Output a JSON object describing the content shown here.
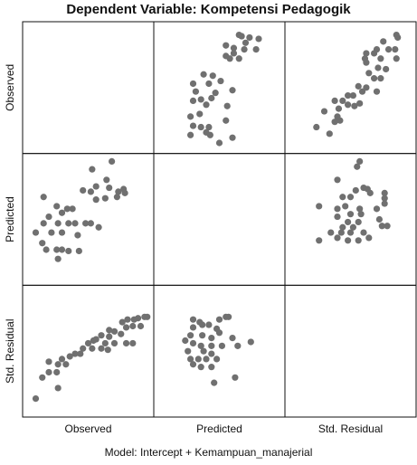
{
  "chart_data": {
    "type": "scatter",
    "title": "Dependent Variable: Kompetensi Pedagogik",
    "footnote": "Model: Intercept + Kemampuan_manajerial",
    "variables": [
      "Observed",
      "Predicted",
      "Std. Residual"
    ],
    "grid": "3x3 scatterplot matrix, diagonal cells empty",
    "cells": [
      {
        "row": "Observed",
        "col": "Predicted",
        "points": [
          [
            0.65,
            0.1
          ],
          [
            0.67,
            0.11
          ],
          [
            0.73,
            0.12
          ],
          [
            0.8,
            0.13
          ],
          [
            0.7,
            0.16
          ],
          [
            0.55,
            0.18
          ],
          [
            0.61,
            0.2
          ],
          [
            0.69,
            0.21
          ],
          [
            0.78,
            0.21
          ],
          [
            0.61,
            0.24
          ],
          [
            0.55,
            0.26
          ],
          [
            0.58,
            0.28
          ],
          [
            0.65,
            0.28
          ],
          [
            0.38,
            0.4
          ],
          [
            0.45,
            0.41
          ],
          [
            0.51,
            0.45
          ],
          [
            0.3,
            0.47
          ],
          [
            0.42,
            0.47
          ],
          [
            0.6,
            0.52
          ],
          [
            0.32,
            0.53
          ],
          [
            0.47,
            0.54
          ],
          [
            0.44,
            0.58
          ],
          [
            0.36,
            0.59
          ],
          [
            0.3,
            0.6
          ],
          [
            0.4,
            0.63
          ],
          [
            0.56,
            0.64
          ],
          [
            0.35,
            0.7
          ],
          [
            0.28,
            0.72
          ],
          [
            0.55,
            0.75
          ],
          [
            0.3,
            0.79
          ],
          [
            0.36,
            0.8
          ],
          [
            0.42,
            0.8
          ],
          [
            0.4,
            0.84
          ],
          [
            0.28,
            0.86
          ],
          [
            0.43,
            0.86
          ],
          [
            0.6,
            0.88
          ],
          [
            0.5,
            0.92
          ]
        ]
      },
      {
        "row": "Observed",
        "col": "Std. Residual",
        "points": [
          [
            0.85,
            0.1
          ],
          [
            0.86,
            0.12
          ],
          [
            0.75,
            0.15
          ],
          [
            0.7,
            0.21
          ],
          [
            0.79,
            0.21
          ],
          [
            0.84,
            0.21
          ],
          [
            0.62,
            0.24
          ],
          [
            0.68,
            0.24
          ],
          [
            0.61,
            0.28
          ],
          [
            0.73,
            0.28
          ],
          [
            0.85,
            0.28
          ],
          [
            0.62,
            0.31
          ],
          [
            0.71,
            0.35
          ],
          [
            0.77,
            0.36
          ],
          [
            0.64,
            0.39
          ],
          [
            0.68,
            0.43
          ],
          [
            0.73,
            0.43
          ],
          [
            0.56,
            0.49
          ],
          [
            0.62,
            0.5
          ],
          [
            0.59,
            0.53
          ],
          [
            0.7,
            0.53
          ],
          [
            0.48,
            0.56
          ],
          [
            0.52,
            0.56
          ],
          [
            0.38,
            0.6
          ],
          [
            0.44,
            0.6
          ],
          [
            0.57,
            0.62
          ],
          [
            0.48,
            0.63
          ],
          [
            0.53,
            0.64
          ],
          [
            0.41,
            0.66
          ],
          [
            0.3,
            0.68
          ],
          [
            0.4,
            0.72
          ],
          [
            0.42,
            0.75
          ],
          [
            0.24,
            0.8
          ],
          [
            0.38,
            0.76
          ],
          [
            0.34,
            0.85
          ]
        ]
      },
      {
        "row": "Predicted",
        "col": "Observed",
        "points": [
          [
            0.68,
            0.06
          ],
          [
            0.53,
            0.12
          ],
          [
            0.64,
            0.2
          ],
          [
            0.56,
            0.25
          ],
          [
            0.66,
            0.26
          ],
          [
            0.77,
            0.27
          ],
          [
            0.46,
            0.28
          ],
          [
            0.52,
            0.29
          ],
          [
            0.73,
            0.29
          ],
          [
            0.78,
            0.3
          ],
          [
            0.16,
            0.33
          ],
          [
            0.72,
            0.33
          ],
          [
            0.63,
            0.34
          ],
          [
            0.56,
            0.35
          ],
          [
            0.26,
            0.4
          ],
          [
            0.34,
            0.42
          ],
          [
            0.38,
            0.42
          ],
          [
            0.3,
            0.45
          ],
          [
            0.2,
            0.48
          ],
          [
            0.16,
            0.53
          ],
          [
            0.27,
            0.53
          ],
          [
            0.35,
            0.53
          ],
          [
            0.4,
            0.53
          ],
          [
            0.48,
            0.53
          ],
          [
            0.52,
            0.53
          ],
          [
            0.58,
            0.56
          ],
          [
            0.1,
            0.6
          ],
          [
            0.22,
            0.6
          ],
          [
            0.3,
            0.6
          ],
          [
            0.42,
            0.62
          ],
          [
            0.15,
            0.68
          ],
          [
            0.18,
            0.73
          ],
          [
            0.26,
            0.73
          ],
          [
            0.3,
            0.73
          ],
          [
            0.35,
            0.74
          ],
          [
            0.43,
            0.74
          ],
          [
            0.27,
            0.8
          ]
        ]
      },
      {
        "row": "Predicted",
        "col": "Std. Residual",
        "points": [
          [
            0.57,
            0.06
          ],
          [
            0.55,
            0.1
          ],
          [
            0.4,
            0.2
          ],
          [
            0.63,
            0.27
          ],
          [
            0.6,
            0.26
          ],
          [
            0.54,
            0.28
          ],
          [
            0.65,
            0.3
          ],
          [
            0.44,
            0.33
          ],
          [
            0.5,
            0.33
          ],
          [
            0.76,
            0.3
          ],
          [
            0.76,
            0.34
          ],
          [
            0.26,
            0.4
          ],
          [
            0.76,
            0.38
          ],
          [
            0.57,
            0.42
          ],
          [
            0.46,
            0.4
          ],
          [
            0.4,
            0.42
          ],
          [
            0.7,
            0.42
          ],
          [
            0.58,
            0.46
          ],
          [
            0.5,
            0.46
          ],
          [
            0.4,
            0.48
          ],
          [
            0.48,
            0.52
          ],
          [
            0.56,
            0.52
          ],
          [
            0.44,
            0.56
          ],
          [
            0.52,
            0.56
          ],
          [
            0.72,
            0.5
          ],
          [
            0.74,
            0.55
          ],
          [
            0.78,
            0.55
          ],
          [
            0.35,
            0.6
          ],
          [
            0.43,
            0.6
          ],
          [
            0.5,
            0.6
          ],
          [
            0.6,
            0.6
          ],
          [
            0.4,
            0.64
          ],
          [
            0.48,
            0.66
          ],
          [
            0.56,
            0.66
          ],
          [
            0.64,
            0.64
          ],
          [
            0.26,
            0.66
          ]
        ]
      },
      {
        "row": "Std. Residual",
        "col": "Observed",
        "points": [
          [
            0.93,
            0.24
          ],
          [
            0.95,
            0.24
          ],
          [
            0.85,
            0.26
          ],
          [
            0.88,
            0.25
          ],
          [
            0.8,
            0.26
          ],
          [
            0.76,
            0.28
          ],
          [
            0.79,
            0.32
          ],
          [
            0.84,
            0.31
          ],
          [
            0.9,
            0.31
          ],
          [
            0.66,
            0.34
          ],
          [
            0.7,
            0.35
          ],
          [
            0.75,
            0.37
          ],
          [
            0.6,
            0.38
          ],
          [
            0.66,
            0.39
          ],
          [
            0.56,
            0.41
          ],
          [
            0.5,
            0.44
          ],
          [
            0.54,
            0.42
          ],
          [
            0.63,
            0.44
          ],
          [
            0.7,
            0.44
          ],
          [
            0.79,
            0.44
          ],
          [
            0.84,
            0.44
          ],
          [
            0.46,
            0.48
          ],
          [
            0.53,
            0.48
          ],
          [
            0.6,
            0.48
          ],
          [
            0.65,
            0.49
          ],
          [
            0.4,
            0.52
          ],
          [
            0.44,
            0.52
          ],
          [
            0.3,
            0.56
          ],
          [
            0.36,
            0.54
          ],
          [
            0.2,
            0.58
          ],
          [
            0.27,
            0.6
          ],
          [
            0.33,
            0.6
          ],
          [
            0.2,
            0.66
          ],
          [
            0.26,
            0.66
          ],
          [
            0.15,
            0.7
          ],
          [
            0.27,
            0.78
          ],
          [
            0.1,
            0.86
          ]
        ]
      },
      {
        "row": "Std. Residual",
        "col": "Predicted",
        "points": [
          [
            0.55,
            0.24
          ],
          [
            0.57,
            0.24
          ],
          [
            0.5,
            0.26
          ],
          [
            0.3,
            0.26
          ],
          [
            0.35,
            0.28
          ],
          [
            0.3,
            0.32
          ],
          [
            0.37,
            0.3
          ],
          [
            0.42,
            0.3
          ],
          [
            0.48,
            0.33
          ],
          [
            0.5,
            0.36
          ],
          [
            0.28,
            0.38
          ],
          [
            0.37,
            0.38
          ],
          [
            0.44,
            0.4
          ],
          [
            0.6,
            0.4
          ],
          [
            0.24,
            0.42
          ],
          [
            0.3,
            0.44
          ],
          [
            0.36,
            0.46
          ],
          [
            0.44,
            0.46
          ],
          [
            0.52,
            0.46
          ],
          [
            0.64,
            0.46
          ],
          [
            0.74,
            0.43
          ],
          [
            0.26,
            0.5
          ],
          [
            0.38,
            0.5
          ],
          [
            0.44,
            0.52
          ],
          [
            0.28,
            0.56
          ],
          [
            0.34,
            0.56
          ],
          [
            0.4,
            0.56
          ],
          [
            0.48,
            0.56
          ],
          [
            0.3,
            0.6
          ],
          [
            0.36,
            0.62
          ],
          [
            0.44,
            0.62
          ],
          [
            0.62,
            0.7
          ],
          [
            0.46,
            0.74
          ]
        ]
      }
    ],
    "marker_color": "#707070"
  },
  "colors": {
    "border": "#111111",
    "marker": "#707070",
    "background": "#ffffff"
  }
}
